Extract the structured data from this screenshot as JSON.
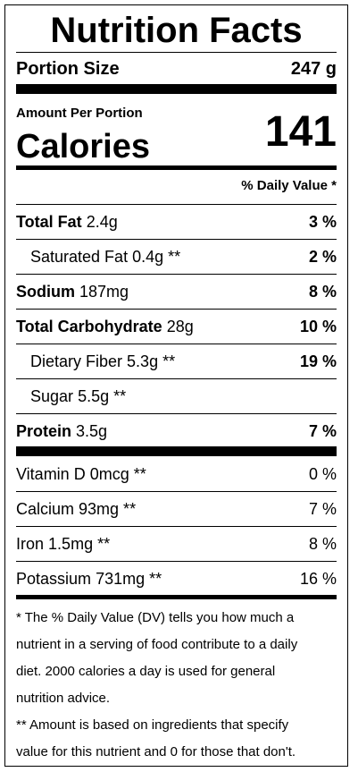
{
  "title": "Nutrition Facts",
  "portion": {
    "label": "Portion Size",
    "value": "247 g"
  },
  "amount_per": "Amount Per Portion",
  "calories": {
    "label": "Calories",
    "value": "141"
  },
  "daily_value_header": "% Daily Value *",
  "nutrients": [
    {
      "name": "Total Fat",
      "amount": "2.4g",
      "pct": "3 %",
      "bold": true,
      "indent": false
    },
    {
      "name": "Saturated Fat",
      "amount": "0.4g **",
      "pct": "2 %",
      "bold": false,
      "indent": true
    },
    {
      "name": "Sodium",
      "amount": "187mg",
      "pct": "8 %",
      "bold": true,
      "indent": false
    },
    {
      "name": "Total Carbohydrate",
      "amount": "28g",
      "pct": "10 %",
      "bold": true,
      "indent": false
    },
    {
      "name": "Dietary Fiber",
      "amount": "5.3g **",
      "pct": "19 %",
      "bold": false,
      "indent": true
    },
    {
      "name": "Sugar",
      "amount": "5.5g **",
      "pct": "",
      "bold": false,
      "indent": true
    },
    {
      "name": "Protein",
      "amount": "3.5g",
      "pct": "7 %",
      "bold": true,
      "indent": false
    }
  ],
  "vitamins": [
    {
      "name": "Vitamin D",
      "amount": "0mcg **",
      "pct": "0 %"
    },
    {
      "name": "Calcium",
      "amount": "93mg **",
      "pct": "7 %"
    },
    {
      "name": "Iron",
      "amount": "1.5mg **",
      "pct": "8 %"
    },
    {
      "name": "Potassium",
      "amount": "731mg **",
      "pct": "16 %"
    }
  ],
  "footnotes": {
    "line1": "* The % Daily Value (DV) tells you how much a",
    "line2": "nutrient in a serving of food contribute to a daily",
    "line3": "diet. 2000 calories a day is used for general",
    "line4": "nutrition advice.",
    "line5": "** Amount is based on ingredients that specify",
    "line6": "value for this nutrient and 0 for those that don't."
  }
}
